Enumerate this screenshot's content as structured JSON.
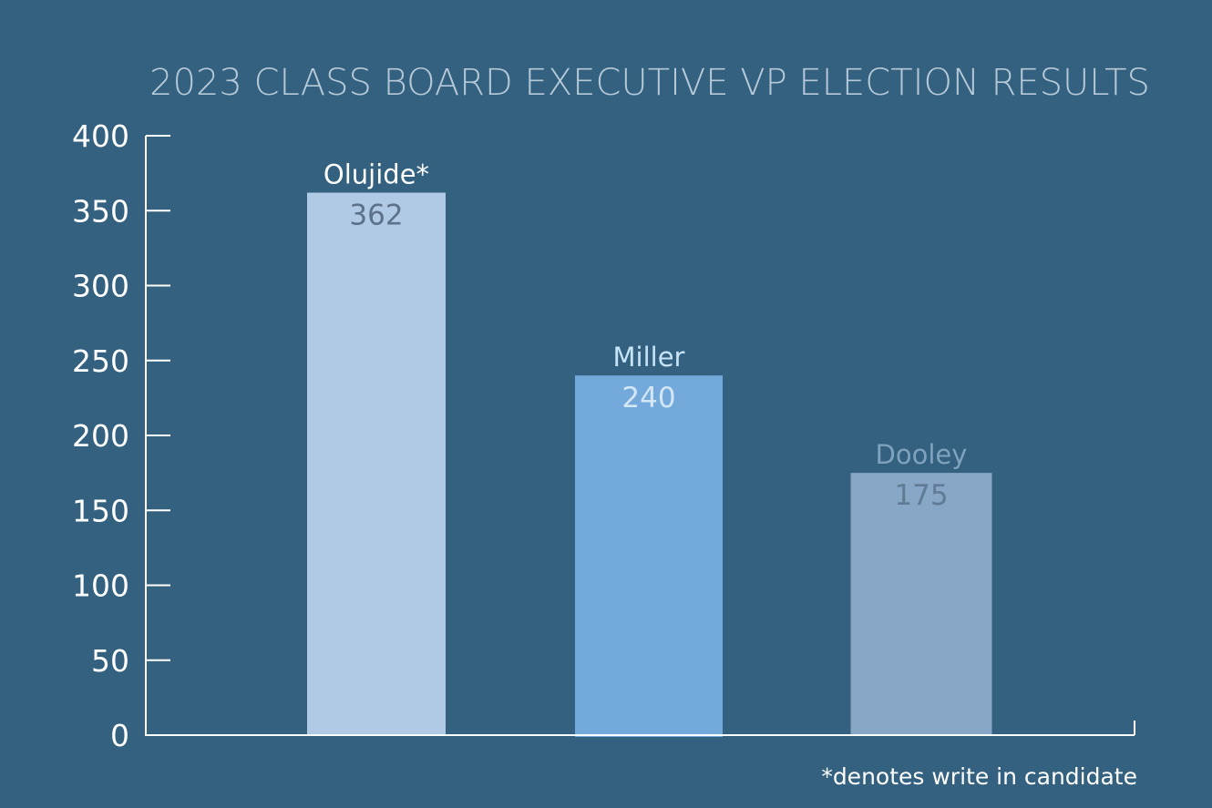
{
  "chart_data": {
    "type": "bar",
    "title": "2023 CLASS BOARD EXECUTIVE VP ELECTION RESULTS",
    "xlabel": "",
    "ylabel": "",
    "ylim": [
      0,
      400
    ],
    "yticks": [
      0,
      50,
      100,
      150,
      200,
      250,
      300,
      350,
      400
    ],
    "ytick_labels": [
      "0",
      "50",
      "100",
      "150",
      "200",
      "250",
      "300",
      "350",
      "400"
    ],
    "grid": false,
    "categories": [
      "Olujide*",
      "Miller",
      "Dooley"
    ],
    "values": [
      362,
      240,
      175
    ],
    "value_labels": [
      "362",
      "240",
      "175"
    ],
    "bar_colors": [
      "#b0cae5",
      "#74a9db",
      "#88a6c5"
    ],
    "name_label_colors": [
      "#ffffff",
      "#c6e4f8",
      "#7fa2bd"
    ],
    "value_label_colors": [
      "#5d7288",
      "#d3e6f5",
      "#5f7b95"
    ],
    "footnote": "*denotes write in candidate"
  },
  "colors": {
    "background": "#33617f",
    "axis": "#ffffff",
    "title": "#b6c9d8",
    "tick_text": "#ffffff",
    "footnote": "#ffffff"
  }
}
